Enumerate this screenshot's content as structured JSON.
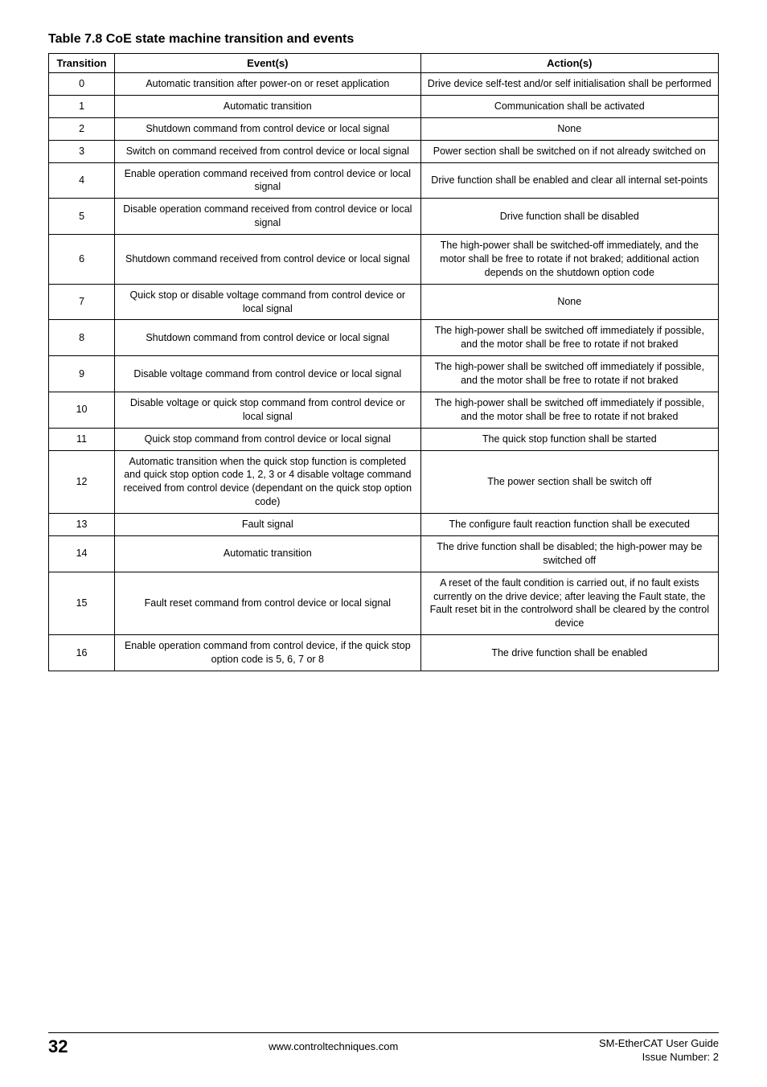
{
  "table": {
    "title": "Table 7.8  CoE state machine transition and events",
    "headers": {
      "c0": "Transition",
      "c1": "Event(s)",
      "c2": "Action(s)"
    },
    "rows": [
      {
        "t": "0",
        "e": "Automatic transition after power-on or reset application",
        "a": "Drive device self-test and/or self initialisation shall be performed"
      },
      {
        "t": "1",
        "e": "Automatic transition",
        "a": "Communication shall be activated"
      },
      {
        "t": "2",
        "e": "Shutdown command from control device or local signal",
        "a": "None"
      },
      {
        "t": "3",
        "e": "Switch on command received from control device or local signal",
        "a": "Power section shall be switched on if not already switched on"
      },
      {
        "t": "4",
        "e": "Enable operation command received from control device or local signal",
        "a": "Drive function shall be enabled and clear all internal set-points"
      },
      {
        "t": "5",
        "e": "Disable operation command received from control device or local signal",
        "a": "Drive function shall be disabled"
      },
      {
        "t": "6",
        "e": "Shutdown command received from control device or local signal",
        "a": "The high-power shall be switched-off immediately, and the motor shall be free to rotate if not braked; additional action depends on the shutdown option code"
      },
      {
        "t": "7",
        "e": "Quick stop or disable voltage command from control device or local signal",
        "a": "None"
      },
      {
        "t": "8",
        "e": "Shutdown command from control device or local signal",
        "a": "The high-power shall be switched off immediately if possible, and the motor shall be free to rotate if not braked"
      },
      {
        "t": "9",
        "e": "Disable voltage command from control device or local signal",
        "a": "The high-power shall be switched off immediately if possible, and the motor shall be free to rotate if not braked"
      },
      {
        "t": "10",
        "e": "Disable voltage or quick stop command from control device or local signal",
        "a": "The high-power shall be switched off immediately if possible, and the motor shall be free to rotate if not braked"
      },
      {
        "t": "11",
        "e": "Quick stop command from control device or local signal",
        "a": "The quick stop function shall be started"
      },
      {
        "t": "12",
        "e": "Automatic transition when the quick stop function is completed and quick stop option code 1, 2, 3 or 4 disable voltage command received from control device (dependant on the quick stop option code)",
        "a": "The power section shall be switch off"
      },
      {
        "t": "13",
        "e": "Fault signal",
        "a": "The configure fault reaction function shall be executed"
      },
      {
        "t": "14",
        "e": "Automatic transition",
        "a": "The drive function shall be disabled; the high-power may be switched off"
      },
      {
        "t": "15",
        "e": "Fault reset command from control device or local signal",
        "a": "A reset of the fault condition is carried out, if no fault exists currently on the drive device; after leaving the Fault state, the Fault reset bit in the controlword shall be cleared by the control device"
      },
      {
        "t": "16",
        "e": "Enable operation command from control device, if the quick stop option code is 5, 6, 7 or 8",
        "a": "The drive function shall be enabled"
      }
    ]
  },
  "footer": {
    "page": "32",
    "center": "www.controltechniques.com",
    "right1": "SM-EtherCAT User Guide",
    "right2": "Issue Number:  2"
  }
}
